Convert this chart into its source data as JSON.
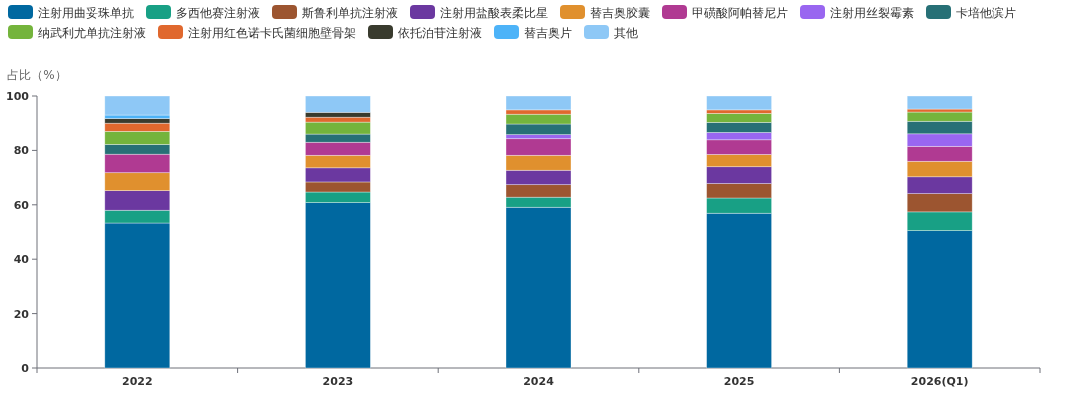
{
  "chart_data": {
    "type": "bar",
    "stacked": true,
    "ylabel": "占比（%）",
    "categories": [
      "2022",
      "2023",
      "2024",
      "2025",
      "2026(Q1)"
    ],
    "ylim": [
      0,
      100
    ],
    "yticks": [
      0,
      20,
      40,
      60,
      80,
      100
    ],
    "grid": false,
    "legend": "top left",
    "series": [
      {
        "name": "注射用曲妥珠单抗",
        "color": "#0068a0",
        "values": [
          53.3,
          60.8,
          59.1,
          56.9,
          50.5
        ]
      },
      {
        "name": "多西他赛注射液",
        "color": "#18a085",
        "values": [
          4.7,
          3.9,
          3.7,
          5.6,
          6.9
        ]
      },
      {
        "name": "斯鲁利单抗注射液",
        "color": "#9c5530",
        "values": [
          null,
          3.7,
          4.6,
          5.3,
          6.7
        ]
      },
      {
        "name": "注射用盐酸表柔比星",
        "color": "#6b38a0",
        "values": [
          7.2,
          5.2,
          5.3,
          6.2,
          6.2
        ]
      },
      {
        "name": "替吉奥胶囊",
        "color": "#e0902e",
        "values": [
          6.6,
          4.6,
          5.5,
          4.5,
          5.7
        ]
      },
      {
        "name": "甲磺酸阿帕替尼片",
        "color": "#b03a92",
        "values": [
          6.8,
          4.8,
          6.1,
          5.4,
          5.5
        ]
      },
      {
        "name": "注射用丝裂霉素",
        "color": "#9966f0",
        "values": [
          null,
          null,
          1.5,
          2.7,
          4.6
        ]
      },
      {
        "name": "卡培他滨片",
        "color": "#277076",
        "values": [
          3.6,
          3.0,
          3.9,
          3.7,
          4.6
        ]
      },
      {
        "name": "纳武利尤单抗注射液",
        "color": "#74b43c",
        "values": [
          4.8,
          4.4,
          3.6,
          3.3,
          3.4
        ]
      },
      {
        "name": "注射用红色诺卡氏菌细胞壁骨架",
        "color": "#e0682e",
        "values": [
          3.0,
          1.8,
          1.6,
          1.3,
          1.1
        ]
      },
      {
        "name": "依托泊苷注射液",
        "color": "#393b2e",
        "values": [
          1.7,
          1.8,
          null,
          null,
          null
        ]
      },
      {
        "name": "替吉奥片",
        "color": "#4db3f8",
        "values": [
          1.3,
          null,
          null,
          null,
          null
        ]
      },
      {
        "name": "其他",
        "color": "#8ec8f6",
        "values": [
          7.0,
          6.0,
          5.1,
          5.1,
          4.8
        ]
      }
    ]
  }
}
